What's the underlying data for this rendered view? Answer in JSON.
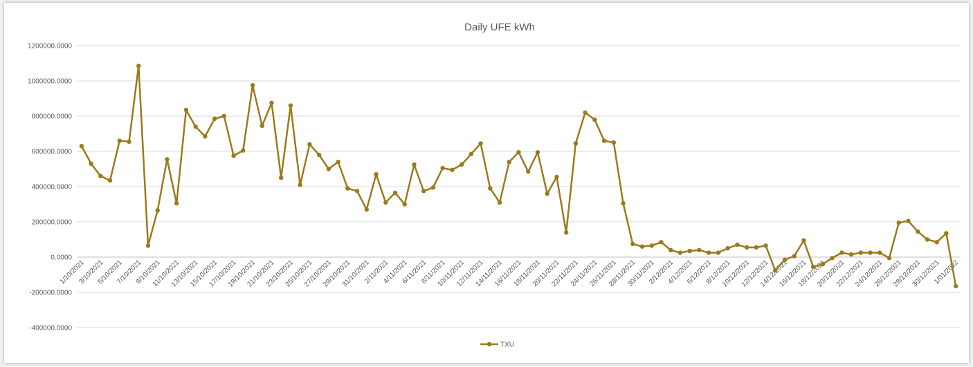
{
  "chart_data": {
    "type": "line",
    "title": "Daily UFE kWh",
    "categories": [
      "1/10/2021",
      null,
      "3/10/2021",
      null,
      "5/10/2021",
      null,
      "7/10/2021",
      null,
      "9/10/2021",
      null,
      "11/10/2021",
      null,
      "13/10/2021",
      null,
      "15/10/2021",
      null,
      "17/10/2021",
      null,
      "19/10/2021",
      null,
      "21/10/2021",
      null,
      "23/10/2021",
      null,
      "25/10/2021",
      null,
      "27/10/2021",
      null,
      "29/10/2021",
      null,
      "31/10/2021",
      null,
      "2/11/2021",
      null,
      "4/11/2021",
      null,
      "6/11/2021",
      null,
      "8/11/2021",
      null,
      "10/11/2021",
      null,
      "12/11/2021",
      null,
      "14/11/2021",
      null,
      "16/11/2021",
      null,
      "18/11/2021",
      null,
      "20/11/2021",
      null,
      "22/11/2021",
      null,
      "24/11/2021",
      null,
      "26/11/2021",
      null,
      "28/11/2021",
      null,
      "30/11/2021",
      null,
      "2/12/2021",
      null,
      "4/12/2021",
      null,
      "6/12/2021",
      null,
      "8/12/2021",
      null,
      "10/12/2021",
      null,
      "12/12/2021",
      null,
      "14/12/2021",
      null,
      "16/12/2021",
      null,
      "18/12/2021",
      null,
      "20/12/2021",
      null,
      "22/12/2021",
      null,
      "24/12/2021",
      null,
      "26/12/2021",
      null,
      "28/12/2021",
      null,
      "30/12/2021",
      null,
      "1/01/2022"
    ],
    "series": [
      {
        "name": "TXU",
        "color": "#9a7a1c",
        "values": [
          630000,
          530000,
          460000,
          435000,
          660000,
          655000,
          1085000,
          65000,
          265000,
          555000,
          305000,
          835000,
          740000,
          685000,
          785000,
          800000,
          575000,
          605000,
          975000,
          745000,
          875000,
          450000,
          860000,
          410000,
          640000,
          580000,
          500000,
          540000,
          390000,
          375000,
          270000,
          470000,
          310000,
          365000,
          300000,
          525000,
          375000,
          395000,
          505000,
          495000,
          525000,
          585000,
          645000,
          390000,
          310000,
          540000,
          595000,
          485000,
          595000,
          360000,
          455000,
          140000,
          645000,
          820000,
          780000,
          660000,
          650000,
          305000,
          75000,
          60000,
          65000,
          85000,
          40000,
          25000,
          35000,
          40000,
          25000,
          25000,
          50000,
          70000,
          55000,
          55000,
          65000,
          -75000,
          -15000,
          5000,
          95000,
          -55000,
          -40000,
          -5000,
          25000,
          15000,
          25000,
          25000,
          25000,
          -5000,
          195000,
          205000,
          145000,
          100000,
          85000,
          135000,
          -165000
        ]
      }
    ],
    "ylim": [
      -400000,
      1200000
    ],
    "yticks": [
      {
        "value": -400000,
        "label": "-400000.0000"
      },
      {
        "value": -200000,
        "label": "-200000.0000"
      },
      {
        "value": 0,
        "label": "0.0000"
      },
      {
        "value": 200000,
        "label": "200000.0000"
      },
      {
        "value": 400000,
        "label": "400000.0000"
      },
      {
        "value": 600000,
        "label": "600000.0000"
      },
      {
        "value": 800000,
        "label": "800000.0000"
      },
      {
        "value": 1000000,
        "label": "1000000.0000"
      },
      {
        "value": 1200000,
        "label": "1200000.0000"
      }
    ],
    "grid": true,
    "legend": "bottom"
  }
}
